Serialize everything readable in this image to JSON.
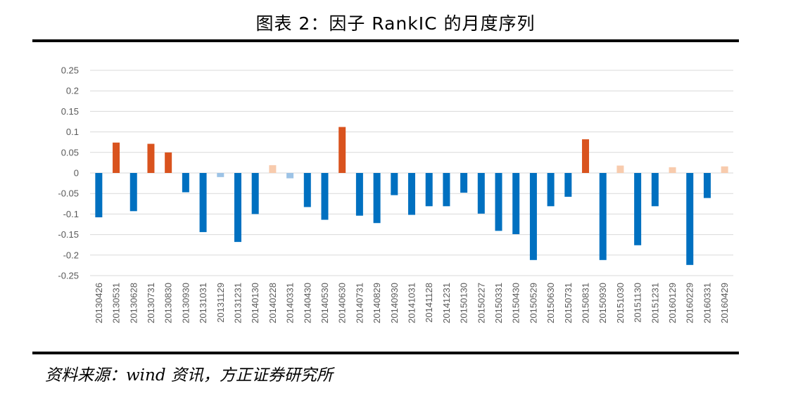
{
  "title": "图表 2：因子 RankIC 的月度序列",
  "source": "资料来源：wind 资讯，方正证券研究所",
  "colors": {
    "neg_significant": "#0070C0",
    "neg_minor": "#9DC3E6",
    "pos_significant": "#D9531E",
    "pos_minor": "#F8CBAD",
    "gridline": "#D9D9D9",
    "axis_text": "#595959"
  },
  "chart_data": {
    "type": "bar",
    "ylim": [
      -0.25,
      0.25
    ],
    "yticks": [
      "0.25",
      "0.2",
      "0.15",
      "0.1",
      "0.05",
      "0",
      "-0.05",
      "-0.1",
      "-0.15",
      "-0.2",
      "-0.25"
    ],
    "grid": true,
    "categories": [
      "20130426",
      "20130531",
      "20130628",
      "20130731",
      "20130830",
      "20130930",
      "20131031",
      "20131129",
      "20131231",
      "20140130",
      "20140228",
      "20140331",
      "20140430",
      "20140530",
      "20140630",
      "20140731",
      "20140829",
      "20140930",
      "20141031",
      "20141128",
      "20141231",
      "20150130",
      "20150227",
      "20150331",
      "20150430",
      "20150529",
      "20150630",
      "20150731",
      "20150831",
      "20150930",
      "20151030",
      "20151130",
      "20151231",
      "20160129",
      "20160229",
      "20160331",
      "20160429"
    ],
    "values": [
      -0.108,
      0.074,
      -0.093,
      0.071,
      0.05,
      -0.047,
      -0.144,
      -0.01,
      -0.168,
      -0.1,
      0.019,
      -0.013,
      -0.083,
      -0.114,
      0.112,
      -0.104,
      -0.122,
      -0.054,
      -0.102,
      -0.081,
      -0.081,
      -0.048,
      -0.099,
      -0.141,
      -0.149,
      -0.212,
      -0.081,
      -0.058,
      0.082,
      -0.212,
      0.018,
      -0.176,
      -0.081,
      0.014,
      -0.224,
      -0.061,
      0.016
    ],
    "colors": [
      "neg_significant",
      "pos_significant",
      "neg_significant",
      "pos_significant",
      "pos_significant",
      "neg_significant",
      "neg_significant",
      "neg_minor",
      "neg_significant",
      "neg_significant",
      "pos_minor",
      "neg_minor",
      "neg_significant",
      "neg_significant",
      "pos_significant",
      "neg_significant",
      "neg_significant",
      "neg_significant",
      "neg_significant",
      "neg_significant",
      "neg_significant",
      "neg_significant",
      "neg_significant",
      "neg_significant",
      "neg_significant",
      "neg_significant",
      "neg_significant",
      "neg_significant",
      "pos_significant",
      "neg_significant",
      "pos_minor",
      "neg_significant",
      "neg_significant",
      "pos_minor",
      "neg_significant",
      "neg_significant",
      "pos_minor"
    ]
  }
}
